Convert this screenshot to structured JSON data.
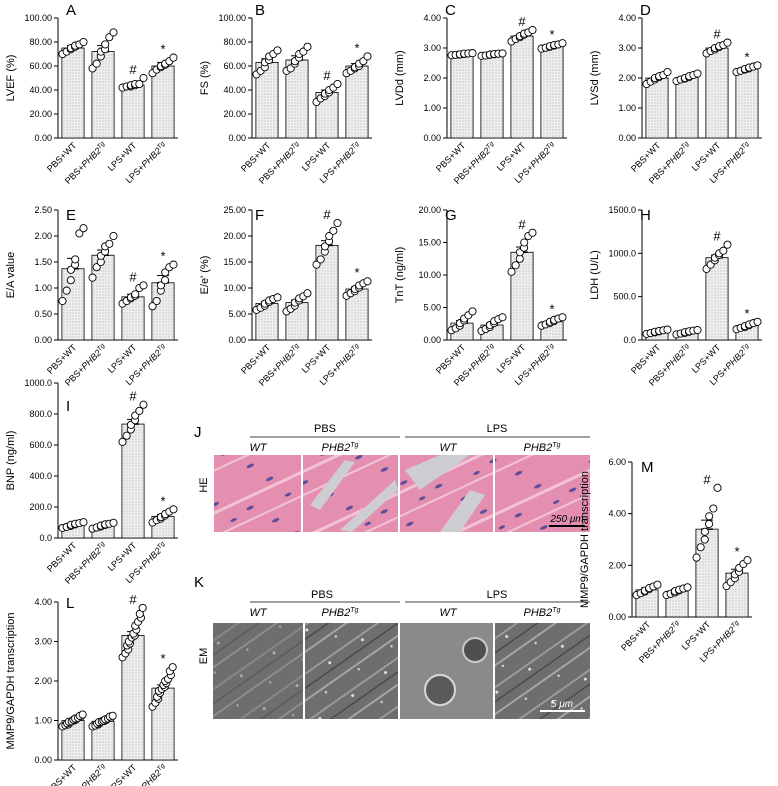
{
  "categories": [
    "PBS+WT",
    "PBS+PHB2Tg",
    "LPS+WT",
    "LPS+PHB2Tg"
  ],
  "category_parts": [
    {
      "base": "PBS+WT",
      "italic": "",
      "sup": ""
    },
    {
      "base": "PBS+",
      "italic": "PHB2",
      "sup": "Tg"
    },
    {
      "base": "LPS+WT",
      "italic": "",
      "sup": ""
    },
    {
      "base": "LPS+",
      "italic": "PHB2",
      "sup": "Tg"
    }
  ],
  "colors": {
    "bar_fill": "#efefef",
    "bar_pattern": "#9a9a9a",
    "he_tissue": "#e58fb0",
    "he_gap": "#cdcdd2",
    "nuclei": "#5a4c9a",
    "em_gray": "#7a7a7a"
  },
  "chart_data": [
    {
      "type": "bar",
      "panel": "A",
      "ylabel": "LVEF (%)",
      "ylim": [
        0,
        100
      ],
      "yticks": [
        "0.00",
        "20.00",
        "40.00",
        "60.00",
        "80.00",
        "100.00"
      ],
      "tick_values": [
        0,
        20,
        40,
        60,
        80,
        100
      ],
      "values": [
        75,
        72,
        44,
        60
      ],
      "errors": [
        2,
        5,
        1.5,
        3
      ],
      "points": [
        [
          70,
          72,
          74,
          75,
          76,
          77,
          78,
          80
        ],
        [
          58,
          62,
          68,
          72,
          74,
          78,
          84,
          88
        ],
        [
          42,
          43,
          43,
          44,
          44,
          45,
          45,
          50
        ],
        [
          54,
          57,
          59,
          60,
          61,
          62,
          64,
          67
        ]
      ],
      "marks": [
        "",
        "",
        "#",
        "*"
      ]
    },
    {
      "type": "bar",
      "panel": "B",
      "ylabel": "FS (%)",
      "ylim": [
        0,
        100
      ],
      "yticks": [
        "0.00",
        "20.00",
        "40.00",
        "60.00",
        "80.00",
        "100.00"
      ],
      "tick_values": [
        0,
        20,
        40,
        60,
        80,
        100
      ],
      "values": [
        63,
        65,
        38,
        60
      ],
      "errors": [
        3,
        3.5,
        2,
        2
      ],
      "points": [
        [
          53,
          56,
          59,
          63,
          65,
          68,
          70,
          73
        ],
        [
          56,
          58,
          62,
          64,
          67,
          70,
          72,
          76
        ],
        [
          30,
          33,
          35,
          37,
          38,
          40,
          42,
          45
        ],
        [
          54,
          56,
          58,
          59,
          60,
          62,
          64,
          68
        ]
      ],
      "marks": [
        "",
        "",
        "#",
        "*"
      ]
    },
    {
      "type": "bar",
      "panel": "C",
      "ylabel": "LVDd (mm)",
      "ylim": [
        0,
        4
      ],
      "yticks": [
        "0.00",
        "1.00",
        "2.00",
        "3.00",
        "4.00"
      ],
      "tick_values": [
        0,
        1,
        2,
        3,
        4
      ],
      "values": [
        2.8,
        2.78,
        3.4,
        3.07
      ],
      "errors": [
        0.02,
        0.02,
        0.06,
        0.04
      ],
      "points": [
        [
          2.76,
          2.77,
          2.78,
          2.79,
          2.8,
          2.81,
          2.82,
          2.83
        ],
        [
          2.74,
          2.75,
          2.77,
          2.78,
          2.79,
          2.8,
          2.81,
          2.82
        ],
        [
          3.22,
          3.3,
          3.36,
          3.4,
          3.44,
          3.48,
          3.52,
          3.6
        ],
        [
          2.98,
          3.01,
          3.04,
          3.06,
          3.08,
          3.1,
          3.12,
          3.16
        ]
      ],
      "marks": [
        "",
        "",
        "#",
        "*"
      ]
    },
    {
      "type": "bar",
      "panel": "D",
      "ylabel": "LVSd (mm)",
      "ylim": [
        0,
        4
      ],
      "yticks": [
        "0.00",
        "1.00",
        "2.00",
        "3.00",
        "4.00"
      ],
      "tick_values": [
        0,
        1,
        2,
        3,
        4
      ],
      "values": [
        2.0,
        2.02,
        3.0,
        2.32
      ],
      "errors": [
        0.05,
        0.04,
        0.05,
        0.04
      ],
      "points": [
        [
          1.8,
          1.88,
          1.95,
          2.0,
          2.03,
          2.06,
          2.1,
          2.2
        ],
        [
          1.9,
          1.95,
          1.98,
          2.0,
          2.03,
          2.06,
          2.1,
          2.15
        ],
        [
          2.82,
          2.9,
          2.95,
          3.0,
          3.03,
          3.06,
          3.1,
          3.18
        ],
        [
          2.2,
          2.24,
          2.28,
          2.3,
          2.32,
          2.35,
          2.38,
          2.42
        ]
      ],
      "marks": [
        "",
        "",
        "#",
        "*"
      ]
    },
    {
      "type": "bar",
      "panel": "E",
      "ylabel": "E/A value",
      "ylim": [
        0,
        2.5
      ],
      "yticks": [
        "0.00",
        "0.50",
        "1.00",
        "1.50",
        "2.00",
        "2.50"
      ],
      "tick_values": [
        0,
        0.5,
        1,
        1.5,
        2,
        2.5
      ],
      "values": [
        1.37,
        1.63,
        0.83,
        1.1
      ],
      "errors": [
        0.2,
        0.1,
        0.05,
        0.14
      ],
      "points": [
        [
          0.75,
          0.95,
          1.15,
          1.35,
          1.45,
          1.55,
          2.05,
          2.15
        ],
        [
          1.2,
          1.4,
          1.5,
          1.62,
          1.7,
          1.8,
          1.85,
          2.0
        ],
        [
          0.7,
          0.75,
          0.8,
          0.82,
          0.85,
          0.88,
          1.0,
          1.05
        ],
        [
          0.65,
          0.75,
          0.95,
          1.05,
          1.15,
          1.3,
          1.4,
          1.45
        ]
      ],
      "marks": [
        "",
        "",
        "#",
        "*"
      ]
    },
    {
      "type": "bar",
      "panel": "F",
      "ylabel": "E/e' (%)",
      "ylim": [
        0,
        25
      ],
      "yticks": [
        "0.00",
        "5.00",
        "10.00",
        "15.00",
        "20.00",
        "25.00"
      ],
      "tick_values": [
        0,
        5,
        10,
        15,
        20,
        25
      ],
      "values": [
        7,
        7.2,
        18.2,
        9.8
      ],
      "errors": [
        0.4,
        0.5,
        0.9,
        0.4
      ],
      "points": [
        [
          5.8,
          6.2,
          6.6,
          7.0,
          7.3,
          7.6,
          7.9,
          8.2
        ],
        [
          5.5,
          6.0,
          6.6,
          7.2,
          7.6,
          8.0,
          8.4,
          9.0
        ],
        [
          14.5,
          15.5,
          17,
          18,
          19,
          20,
          21,
          22.5
        ],
        [
          8.5,
          9.0,
          9.4,
          9.8,
          10.1,
          10.5,
          10.9,
          11.3
        ]
      ],
      "marks": [
        "",
        "",
        "#",
        "*"
      ]
    },
    {
      "type": "bar",
      "panel": "G",
      "ylabel": "TnT (ng/ml)",
      "ylim": [
        0,
        20
      ],
      "yticks": [
        "0.00",
        "5.00",
        "10.00",
        "15.00",
        "20.00"
      ],
      "tick_values": [
        0,
        5,
        10,
        15,
        20
      ],
      "values": [
        2.6,
        2.3,
        13.5,
        2.8
      ],
      "errors": [
        0.4,
        0.3,
        0.8,
        0.2
      ],
      "points": [
        [
          1.5,
          1.8,
          2.2,
          2.6,
          3.0,
          3.3,
          3.8,
          4.4
        ],
        [
          1.4,
          1.7,
          2.0,
          2.3,
          2.6,
          2.9,
          3.2,
          3.5
        ],
        [
          10.5,
          11.5,
          12.5,
          13.5,
          14.2,
          15,
          16,
          16.5
        ],
        [
          2.2,
          2.4,
          2.6,
          2.8,
          2.9,
          3.1,
          3.3,
          3.5
        ]
      ],
      "marks": [
        "",
        "",
        "#",
        "*"
      ]
    },
    {
      "type": "bar",
      "panel": "H",
      "ylabel": "LDH (U/L)",
      "ylim": [
        0,
        1500
      ],
      "yticks": [
        "0.0",
        "500.0",
        "1000.0",
        "1500.0"
      ],
      "tick_values": [
        0,
        500,
        1000,
        1500
      ],
      "values": [
        95,
        90,
        950,
        165
      ],
      "errors": [
        8,
        7,
        30,
        12
      ],
      "points": [
        [
          70,
          80,
          88,
          95,
          100,
          105,
          112,
          120
        ],
        [
          65,
          75,
          82,
          90,
          95,
          100,
          108,
          115
        ],
        [
          820,
          870,
          920,
          950,
          980,
          1000,
          1030,
          1100
        ],
        [
          125,
          140,
          150,
          160,
          170,
          180,
          195,
          210
        ]
      ],
      "marks": [
        "",
        "",
        "#",
        "*"
      ]
    },
    {
      "type": "bar",
      "panel": "I",
      "ylabel": "BNP (ng/ml)",
      "ylim": [
        0,
        1000
      ],
      "yticks": [
        "0.0",
        "200.0",
        "400.0",
        "600.0",
        "800.0",
        "1000.0"
      ],
      "tick_values": [
        0,
        200,
        400,
        600,
        800,
        1000
      ],
      "values": [
        85,
        80,
        735,
        140
      ],
      "errors": [
        6,
        6,
        30,
        12
      ],
      "points": [
        [
          65,
          72,
          78,
          85,
          88,
          92,
          96,
          102
        ],
        [
          60,
          68,
          74,
          80,
          84,
          88,
          92,
          98
        ],
        [
          620,
          660,
          700,
          730,
          760,
          790,
          820,
          860
        ],
        [
          100,
          115,
          125,
          135,
          145,
          155,
          170,
          185
        ]
      ],
      "marks": [
        "",
        "",
        "#",
        "*"
      ]
    },
    {
      "type": "bar",
      "panel": "L",
      "ylabel": "MMP9/GAPDH transcription",
      "ylim": [
        0,
        4
      ],
      "yticks": [
        "0.00",
        "1.00",
        "2.00",
        "3.00",
        "4.00"
      ],
      "tick_values": [
        0,
        1,
        2,
        3,
        4
      ],
      "values": [
        1.0,
        0.98,
        3.15,
        1.82
      ],
      "errors": [
        0.03,
        0.03,
        0.1,
        0.08
      ],
      "points": [
        [
          0.85,
          0.88,
          0.9,
          0.93,
          0.95,
          0.97,
          0.98,
          1.0,
          1.02,
          1.03,
          1.05,
          1.07,
          1.1,
          1.12,
          1.15
        ],
        [
          0.85,
          0.87,
          0.9,
          0.92,
          0.94,
          0.96,
          0.98,
          0.99,
          1.0,
          1.02,
          1.03,
          1.05,
          1.07,
          1.1,
          1.12
        ],
        [
          2.6,
          2.7,
          2.8,
          2.9,
          2.95,
          3.0,
          3.1,
          3.15,
          3.2,
          3.3,
          3.4,
          3.5,
          3.6,
          3.7,
          3.85
        ],
        [
          1.35,
          1.45,
          1.55,
          1.6,
          1.7,
          1.75,
          1.8,
          1.85,
          1.9,
          1.95,
          2.0,
          2.05,
          2.15,
          2.25,
          2.35
        ]
      ],
      "marks": [
        "",
        "",
        "#",
        "*"
      ]
    },
    {
      "type": "bar",
      "panel": "M",
      "ylabel": "MMP9/GAPDH transcription",
      "ylim": [
        0,
        6
      ],
      "yticks": [
        "0.00",
        "2.00",
        "4.00",
        "6.00"
      ],
      "tick_values": [
        0,
        2,
        4,
        6
      ],
      "values": [
        1.05,
        1.0,
        3.4,
        1.7
      ],
      "errors": [
        0.08,
        0.06,
        0.35,
        0.15
      ],
      "points": [
        [
          0.85,
          0.92,
          0.98,
          1.02,
          1.08,
          1.12,
          1.18,
          1.25
        ],
        [
          0.85,
          0.9,
          0.95,
          1.0,
          1.03,
          1.06,
          1.1,
          1.15
        ],
        [
          2.3,
          2.7,
          3.0,
          3.3,
          3.6,
          3.9,
          4.2,
          5.0
        ],
        [
          1.2,
          1.35,
          1.5,
          1.65,
          1.75,
          1.9,
          2.05,
          2.2
        ]
      ],
      "marks": [
        "",
        "",
        "#",
        "*"
      ]
    }
  ],
  "panel_J": {
    "letter": "J",
    "group1": "PBS",
    "group2": "LPS",
    "cols": [
      {
        "text": "WT",
        "sup": ""
      },
      {
        "text": "PHB2",
        "sup": "Tg"
      },
      {
        "text": "WT",
        "sup": ""
      },
      {
        "text": "PHB2",
        "sup": "Tg"
      }
    ],
    "row_label": "HE",
    "scale_bar": "250 μm"
  },
  "panel_K": {
    "letter": "K",
    "group1": "PBS",
    "group2": "LPS",
    "cols": [
      {
        "text": "WT",
        "sup": ""
      },
      {
        "text": "PHB2",
        "sup": "Tg"
      },
      {
        "text": "WT",
        "sup": ""
      },
      {
        "text": "PHB2",
        "sup": "Tg"
      }
    ],
    "row_label": "EM",
    "scale_bar": "5 μm"
  }
}
